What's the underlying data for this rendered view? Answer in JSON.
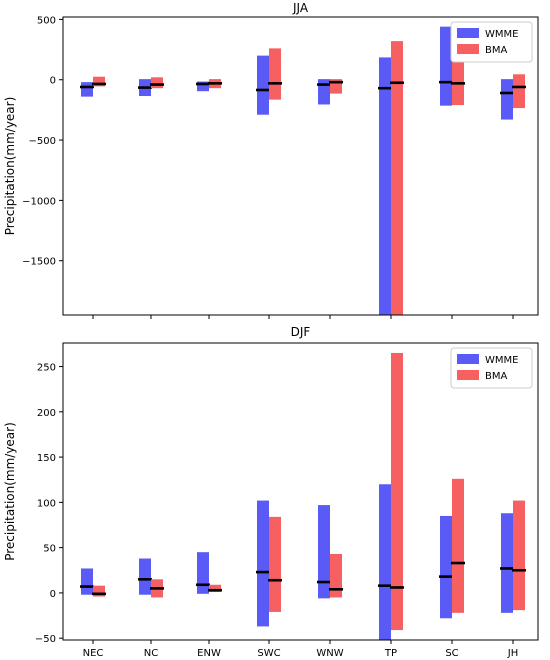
{
  "chart_data": [
    {
      "type": "bar",
      "subtype": "floating-range-with-median",
      "title": "JJA",
      "ylabel": "Precipitation(mm/year)",
      "xlabel": "",
      "categories": [
        "NEC",
        "NC",
        "ENW",
        "SWC",
        "WNW",
        "TP",
        "SC",
        "JH"
      ],
      "ylim": [
        -1950,
        520
      ],
      "yticks": [
        500,
        0,
        -500,
        -1000,
        -1500
      ],
      "ytick_labels": [
        "500",
        "0",
        "−500",
        "−1000",
        "−1500"
      ],
      "show_xtick_labels": false,
      "legend_position": "top-right",
      "series": [
        {
          "name": "WMME",
          "color": "#5a5af7",
          "low": [
            -140,
            -135,
            -95,
            -290,
            -205,
            -1950,
            -215,
            -330
          ],
          "high": [
            -20,
            5,
            -15,
            200,
            5,
            185,
            440,
            5
          ],
          "median": [
            -60,
            -65,
            -35,
            -85,
            -40,
            -70,
            -20,
            -110
          ]
        },
        {
          "name": "BMA",
          "color": "#f76060",
          "low": [
            -55,
            -70,
            -70,
            -165,
            -115,
            -1950,
            -210,
            -235
          ],
          "high": [
            25,
            20,
            5,
            260,
            5,
            320,
            165,
            45
          ],
          "median": [
            -35,
            -40,
            -30,
            -30,
            -20,
            -25,
            -30,
            -60
          ]
        }
      ]
    },
    {
      "type": "bar",
      "subtype": "floating-range-with-median",
      "title": "DJF",
      "ylabel": "Precipitation(mm/year)",
      "xlabel": "",
      "categories": [
        "NEC",
        "NC",
        "ENW",
        "SWC",
        "WNW",
        "TP",
        "SC",
        "JH"
      ],
      "ylim": [
        -52,
        276
      ],
      "yticks": [
        250,
        200,
        150,
        100,
        50,
        0,
        -50
      ],
      "ytick_labels": [
        "250",
        "200",
        "150",
        "100",
        "50",
        "0",
        "−50"
      ],
      "show_xtick_labels": true,
      "legend_position": "top-right",
      "series": [
        {
          "name": "WMME",
          "color": "#5a5af7",
          "low": [
            -2,
            -2,
            -1,
            -37,
            -6,
            -52,
            -28,
            -22
          ],
          "high": [
            27,
            38,
            45,
            102,
            97,
            120,
            85,
            88
          ],
          "median": [
            7,
            15,
            9,
            23,
            12,
            8,
            18,
            27
          ]
        },
        {
          "name": "BMA",
          "color": "#f76060",
          "low": [
            -4,
            -5,
            1,
            -21,
            -5,
            -41,
            -22,
            -19
          ],
          "high": [
            8,
            15,
            9,
            84,
            43,
            265,
            126,
            102
          ],
          "median": [
            -1,
            5,
            3,
            14,
            4,
            6,
            33,
            25
          ]
        }
      ]
    }
  ]
}
